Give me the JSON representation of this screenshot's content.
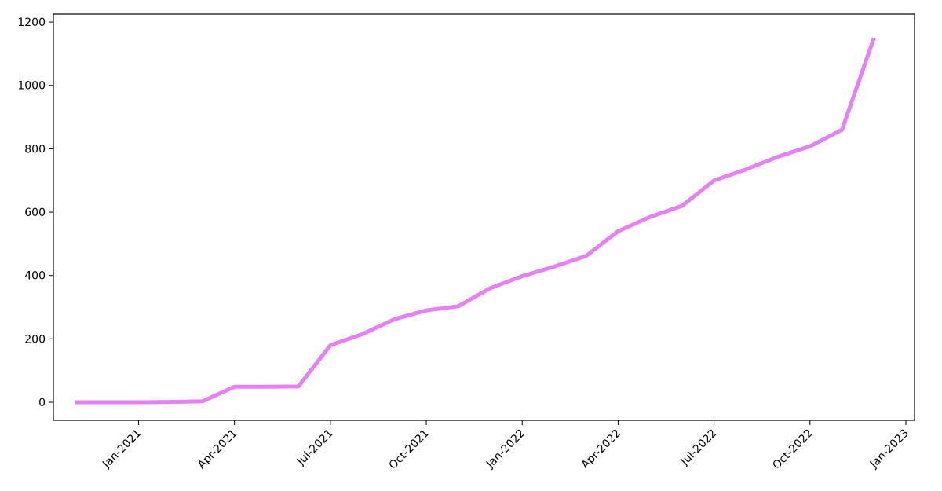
{
  "chart_data": {
    "type": "line",
    "x": [
      "2020-11",
      "2020-12",
      "2021-01",
      "2021-02",
      "2021-03",
      "2021-04",
      "2021-05",
      "2021-06",
      "2021-07",
      "2021-08",
      "2021-09",
      "2021-10",
      "2021-11",
      "2021-12",
      "2022-01",
      "2022-02",
      "2022-03",
      "2022-04",
      "2022-05",
      "2022-06",
      "2022-07",
      "2022-08",
      "2022-09",
      "2022-10",
      "2022-11",
      "2022-12"
    ],
    "series": [
      {
        "color": "#e580f5",
        "values": [
          0,
          0,
          0,
          1,
          3,
          49,
          49,
          50,
          180,
          215,
          262,
          290,
          303,
          360,
          398,
          428,
          462,
          540,
          585,
          620,
          700,
          735,
          775,
          808,
          860,
          1150
        ]
      }
    ],
    "xlim": [
      "2020-11",
      "2023-01"
    ],
    "xticks": [
      {
        "value": "2021-01",
        "label": "Jan-2021"
      },
      {
        "value": "2021-04",
        "label": "Apr-2021"
      },
      {
        "value": "2021-07",
        "label": "Jul-2021"
      },
      {
        "value": "2021-10",
        "label": "Oct-2021"
      },
      {
        "value": "2022-01",
        "label": "Jan-2022"
      },
      {
        "value": "2022-04",
        "label": "Apr-2022"
      },
      {
        "value": "2022-07",
        "label": "Jul-2022"
      },
      {
        "value": "2022-10",
        "label": "Oct-2022"
      },
      {
        "value": "2023-01",
        "label": "Jan-2023"
      }
    ],
    "ylim": [
      -57,
      1225
    ],
    "yticks": [
      0,
      200,
      400,
      600,
      800,
      1000,
      1200
    ]
  }
}
